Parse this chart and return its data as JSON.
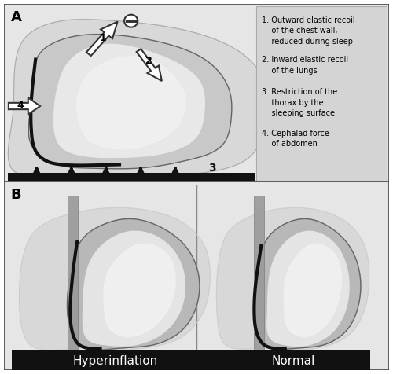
{
  "title_A": "A",
  "title_B": "B",
  "label_hyperinflation": "Hyperinflation",
  "label_normal": "Normal",
  "legend_texts": [
    "1. Outward elastic recoil\n    of the chest wall,\n    reduced during sleep",
    "2. Inward elastic recoil\n    of the lungs",
    "3. Restriction of the\n    thorax by the\n    sleeping surface",
    "4. Cephalad force\n    of abdomen"
  ],
  "bg_color": "#ffffff",
  "panel_bg": "#e6e6e6",
  "legend_bg": "#d4d4d4",
  "body_outer_color": "#d8d8d8",
  "body_inner_color": "#c8c8c8",
  "lung_dark_color": "#a0a0a0",
  "lung_mid_color": "#c8c8c8",
  "lung_light_color": "#e8e8e8",
  "lung_highlight_color": "#f5f5f5",
  "chest_wall_color": "#111111",
  "floor_color": "#111111",
  "arrow_fill": "#ffffff",
  "arrow_edge": "#333333",
  "outline_color": "#777777"
}
